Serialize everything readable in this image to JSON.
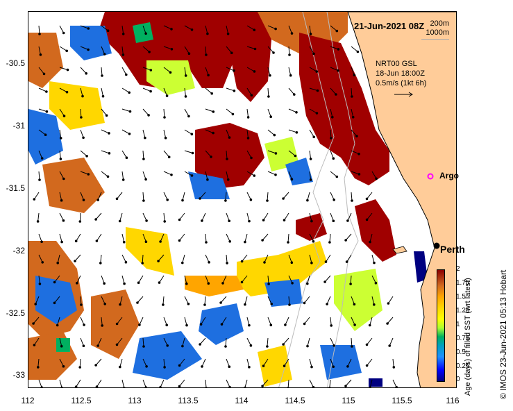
{
  "map": {
    "title": "21-Jun-2021 08Z",
    "contour_legend": [
      "200m",
      "1000m"
    ],
    "model_info": [
      "NRT00 GSL",
      "18-Jun 18:00Z",
      "0.5m/s (1kt 6h)"
    ],
    "lat_ticks": [
      "-30.5",
      "-31",
      "-31.5",
      "-32",
      "-32.5",
      "-33"
    ],
    "lon_ticks": [
      "112",
      "112.5",
      "113",
      "113.5",
      "114",
      "114.5",
      "115",
      "115.5",
      "116"
    ],
    "places": [
      {
        "name": "Argo",
        "marker_color": "#ff00ff"
      },
      {
        "name": "Perth",
        "marker_color": "#000000"
      }
    ],
    "land_color": "#ffcc99",
    "colorbar": {
      "title": "Age (days) of filled SST (wrt latest)",
      "tick_labels": [
        "2",
        "1.75",
        "1.5",
        "1.25",
        "1",
        "0.75",
        "0.5",
        "0.25",
        "0"
      ],
      "colors": [
        "#000080",
        "#0000ff",
        "#1e90ff",
        "#00a0c0",
        "#00b060",
        "#adff2f",
        "#ffff00",
        "#ffd700",
        "#ffa500",
        "#d2691e",
        "#8b0000"
      ]
    },
    "credit": "© IMOS 23-Jun-2021 05:13 Hobart"
  }
}
